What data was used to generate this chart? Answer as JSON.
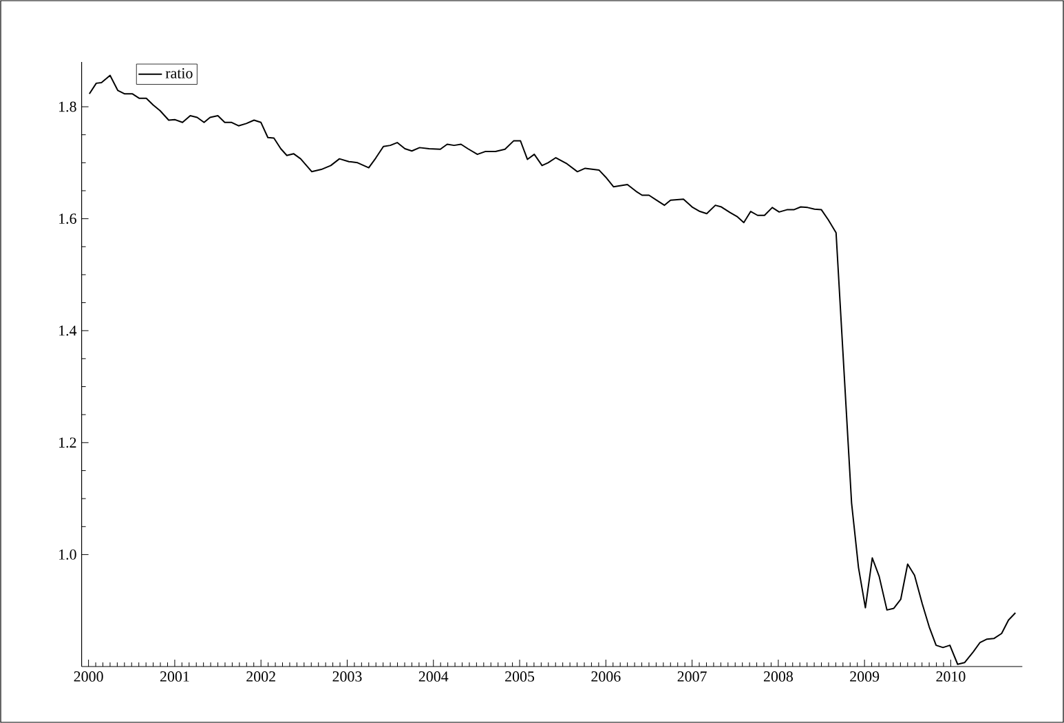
{
  "chart_data": {
    "type": "line",
    "x": [
      2000.01,
      2000.09,
      2000.15,
      2000.25,
      2000.34,
      2000.42,
      2000.51,
      2000.59,
      2000.67,
      2000.75,
      2000.83,
      2000.93,
      2001.0,
      2001.09,
      2001.18,
      2001.26,
      2001.34,
      2001.41,
      2001.5,
      2001.58,
      2001.66,
      2001.74,
      2001.83,
      2001.92,
      2002.0,
      2002.08,
      2002.15,
      2002.23,
      2002.3,
      2002.38,
      2002.46,
      2002.59,
      2002.7,
      2002.81,
      2002.91,
      2003.02,
      2003.12,
      2003.25,
      2003.33,
      2003.42,
      2003.5,
      2003.58,
      2003.67,
      2003.75,
      2003.84,
      2003.95,
      2004.08,
      2004.16,
      2004.24,
      2004.32,
      2004.4,
      2004.51,
      2004.6,
      2004.72,
      2004.83,
      2004.93,
      2005.01,
      2005.09,
      2005.17,
      2005.26,
      2005.33,
      2005.42,
      2005.55,
      2005.67,
      2005.76,
      2005.92,
      2006.0,
      2006.09,
      2006.25,
      2006.35,
      2006.42,
      2006.5,
      2006.59,
      2006.68,
      2006.75,
      2006.9,
      2007.0,
      2007.09,
      2007.17,
      2007.27,
      2007.34,
      2007.44,
      2007.52,
      2007.6,
      2007.68,
      2007.76,
      2007.84,
      2007.93,
      2008.01,
      2008.1,
      2008.18,
      2008.26,
      2008.34,
      2008.42,
      2008.5,
      2008.58,
      2008.67,
      2008.85,
      2008.93,
      2009.01,
      2009.09,
      2009.17,
      2009.26,
      2009.34,
      2009.42,
      2009.5,
      2009.58,
      2009.67,
      2009.75,
      2009.83,
      2009.91,
      2009.99,
      2010.08,
      2010.16,
      2010.26,
      2010.34,
      2010.42,
      2010.5,
      2010.59,
      2010.67,
      2010.75
    ],
    "series": [
      {
        "name": "ratio",
        "color": "#000000",
        "values": [
          1.823,
          1.842,
          1.843,
          1.856,
          1.829,
          1.823,
          1.823,
          1.815,
          1.815,
          1.803,
          1.793,
          1.776,
          1.777,
          1.772,
          1.784,
          1.781,
          1.772,
          1.781,
          1.784,
          1.772,
          1.772,
          1.766,
          1.77,
          1.776,
          1.772,
          1.745,
          1.744,
          1.725,
          1.713,
          1.716,
          1.707,
          1.684,
          1.688,
          1.695,
          1.707,
          1.702,
          1.7,
          1.691,
          1.708,
          1.729,
          1.731,
          1.736,
          1.725,
          1.721,
          1.727,
          1.725,
          1.724,
          1.733,
          1.731,
          1.733,
          1.725,
          1.715,
          1.72,
          1.72,
          1.724,
          1.739,
          1.739,
          1.706,
          1.715,
          1.695,
          1.7,
          1.709,
          1.698,
          1.684,
          1.69,
          1.687,
          1.674,
          1.657,
          1.661,
          1.649,
          1.642,
          1.642,
          1.633,
          1.624,
          1.633,
          1.635,
          1.621,
          1.613,
          1.609,
          1.624,
          1.621,
          1.611,
          1.604,
          1.593,
          1.613,
          1.606,
          1.606,
          1.62,
          1.612,
          1.616,
          1.616,
          1.621,
          1.62,
          1.617,
          1.616,
          1.598,
          1.575,
          1.092,
          0.977,
          0.905,
          0.994,
          0.961,
          0.901,
          0.904,
          0.92,
          0.983,
          0.963,
          0.912,
          0.871,
          0.838,
          0.834,
          0.838,
          0.804,
          0.807,
          0.826,
          0.843,
          0.849,
          0.85,
          0.859,
          0.883,
          0.896
        ]
      }
    ],
    "xlim": [
      1999.92,
      2010.83
    ],
    "ylim": [
      0.8,
      1.88
    ],
    "xticks": [
      2000,
      2001,
      2002,
      2003,
      2004,
      2005,
      2006,
      2007,
      2008,
      2009,
      2010
    ],
    "yticks": [
      {
        "value": 1.0,
        "label": "1.0"
      },
      {
        "value": 1.2,
        "label": "1.2"
      },
      {
        "value": 1.4,
        "label": "1.4"
      },
      {
        "value": 1.6,
        "label": "1.6"
      },
      {
        "value": 1.8,
        "label": "1.8"
      }
    ],
    "legend": "top left",
    "grid": false,
    "line_style": "solid",
    "marker": "none"
  }
}
